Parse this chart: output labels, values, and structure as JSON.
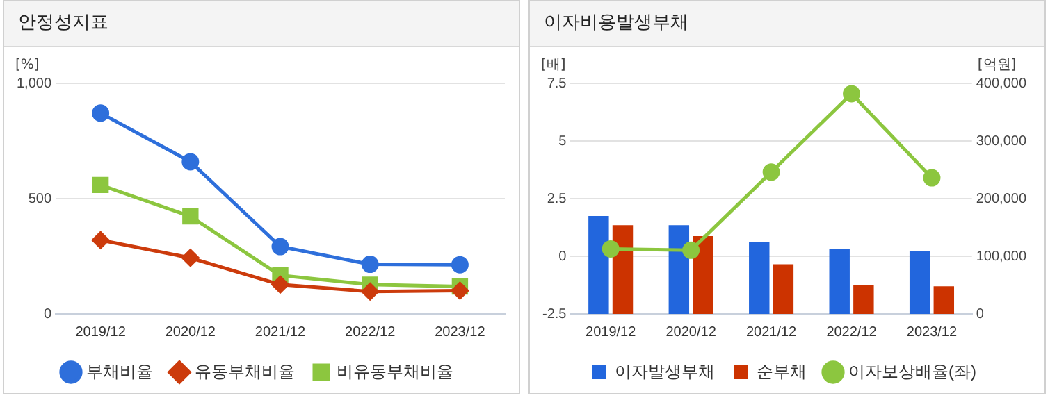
{
  "chart_data": [
    {
      "type": "line",
      "title": "안정성지표",
      "ylabel": "[%]",
      "categories": [
        "2019/12",
        "2020/12",
        "2021/12",
        "2022/12",
        "2023/12"
      ],
      "series": [
        {
          "name": "부채비율",
          "color": "#2e6fdb",
          "marker": "circle",
          "values": [
            871,
            660,
            292,
            215,
            213
          ]
        },
        {
          "name": "유동부채비율",
          "color": "#cc3b0c",
          "marker": "diamond",
          "values": [
            320,
            243,
            127,
            97,
            101
          ]
        },
        {
          "name": "비유동부채비율",
          "color": "#8cc63f",
          "marker": "square",
          "values": [
            559,
            423,
            167,
            127,
            119
          ]
        }
      ],
      "ylim": [
        0,
        1000
      ],
      "yticks": [
        0,
        500,
        {
          "value": 1000,
          "label": "1,000"
        }
      ],
      "grid": "y",
      "legend": "bottom"
    },
    {
      "type": "bar",
      "title": "이자비용발생부채",
      "ylabel": "[배]",
      "y2label": "[억원]",
      "categories": [
        "2019/12",
        "2020/12",
        "2021/12",
        "2022/12",
        "2023/12"
      ],
      "series": [
        {
          "name": "이자발생부채",
          "color": "#2266dd",
          "axis": "y2",
          "values": [
            170000,
            154000,
            125000,
            112000,
            109000
          ]
        },
        {
          "name": "순부채",
          "color": "#cc3300",
          "axis": "y2",
          "values": [
            154000,
            135000,
            86000,
            50000,
            48000
          ]
        },
        {
          "name": "이자보상배율(좌)",
          "type": "line",
          "color": "#8cc63f",
          "marker": "circle",
          "axis": "y",
          "values": [
            0.32,
            0.26,
            3.65,
            7.05,
            3.4
          ]
        }
      ],
      "ylim": [
        -2.5,
        7.5
      ],
      "yticks": [
        -2.5,
        0,
        2.5,
        5,
        7.5
      ],
      "y2lim": [
        0,
        400000
      ],
      "y2ticks": [
        0,
        {
          "value": 100000,
          "label": "100,000"
        },
        {
          "value": 200000,
          "label": "200,000"
        },
        {
          "value": 300000,
          "label": "300,000"
        },
        {
          "value": 400000,
          "label": "400,000"
        }
      ],
      "grid": "y",
      "legend": "bottom"
    }
  ]
}
